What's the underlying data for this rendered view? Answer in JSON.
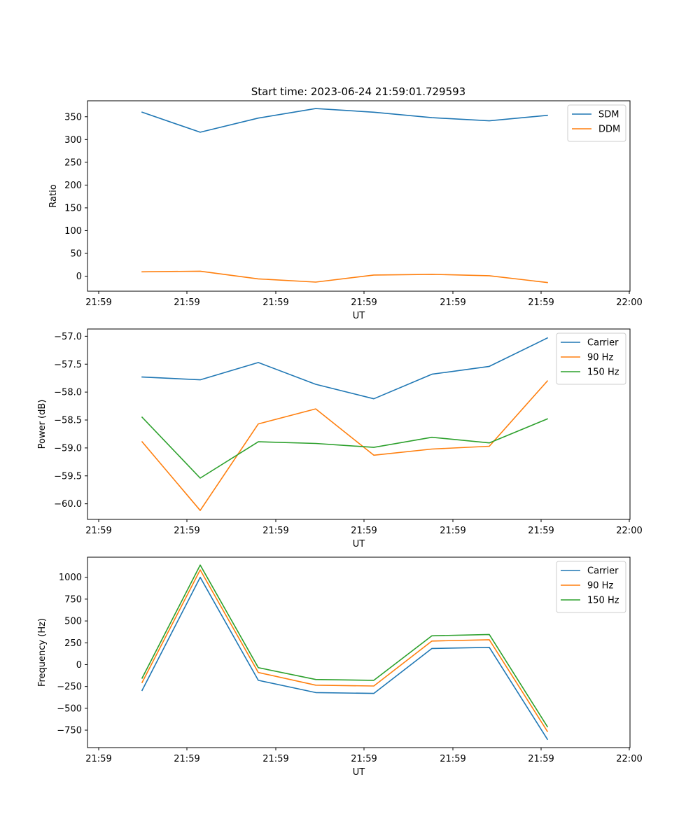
{
  "figure": {
    "title": "Start time: 2023-06-24 21:59:01.729593"
  },
  "chart_data": [
    {
      "type": "line",
      "title": "Start time: 2023-06-24 21:59:01.729593",
      "xlabel": "UT",
      "ylabel": "Ratio",
      "x_tick_labels": [
        "21:59",
        "21:59",
        "21:59",
        "21:59",
        "21:59",
        "21:59",
        "22:00"
      ],
      "x_points": 8,
      "ylim": [
        -33,
        385
      ],
      "yticks": [
        0,
        50,
        100,
        150,
        200,
        250,
        300,
        350
      ],
      "legend_position": "top-right",
      "grid": false,
      "series": [
        {
          "name": "SDM",
          "color": "#1f77b4",
          "values": [
            360,
            316,
            347,
            368,
            360,
            348,
            341,
            353
          ]
        },
        {
          "name": "DDM",
          "color": "#ff7f0e",
          "values": [
            9.5,
            11,
            -6,
            -13,
            2.5,
            4,
            1,
            -14
          ]
        }
      ]
    },
    {
      "type": "line",
      "xlabel": "UT",
      "ylabel": "Power (dB)",
      "x_tick_labels": [
        "21:59",
        "21:59",
        "21:59",
        "21:59",
        "21:59",
        "21:59",
        "22:00"
      ],
      "x_points": 8,
      "ylim": [
        -60.28,
        -56.87
      ],
      "yticks": [
        -60.0,
        -59.5,
        -59.0,
        -58.5,
        -58.0,
        -57.5,
        -57.0
      ],
      "ytick_labels": [
        "−60.0",
        "−59.5",
        "−59.0",
        "−58.5",
        "−58.0",
        "−57.5",
        "−57.0"
      ],
      "legend_position": "top-right",
      "grid": false,
      "series": [
        {
          "name": "Carrier",
          "color": "#1f77b4",
          "values": [
            -57.73,
            -57.78,
            -57.47,
            -57.86,
            -58.12,
            -57.68,
            -57.54,
            -57.03
          ]
        },
        {
          "name": "90 Hz",
          "color": "#ff7f0e",
          "values": [
            -58.89,
            -60.12,
            -58.57,
            -58.3,
            -59.13,
            -59.02,
            -58.97,
            -57.8
          ]
        },
        {
          "name": "150 Hz",
          "color": "#2ca02c",
          "values": [
            -58.45,
            -59.54,
            -58.89,
            -58.92,
            -58.99,
            -58.81,
            -58.91,
            -58.48
          ]
        }
      ]
    },
    {
      "type": "line",
      "xlabel": "UT",
      "ylabel": "Frequency (Hz)",
      "x_tick_labels": [
        "21:59",
        "21:59",
        "21:59",
        "21:59",
        "21:59",
        "21:59",
        "22:00"
      ],
      "x_points": 8,
      "ylim": [
        -950,
        1230
      ],
      "yticks": [
        -750,
        -500,
        -250,
        0,
        250,
        500,
        750,
        1000
      ],
      "ytick_labels": [
        "−750",
        "−500",
        "−250",
        "0",
        "250",
        "500",
        "750",
        "1000"
      ],
      "legend_position": "top-right",
      "grid": false,
      "series": [
        {
          "name": "Carrier",
          "color": "#1f77b4",
          "values": [
            -295,
            1000,
            -180,
            -320,
            -330,
            185,
            198,
            -855
          ]
        },
        {
          "name": "90 Hz",
          "color": "#ff7f0e",
          "values": [
            -205,
            1085,
            -90,
            -235,
            -245,
            270,
            285,
            -765
          ]
        },
        {
          "name": "150 Hz",
          "color": "#2ca02c",
          "values": [
            -155,
            1140,
            -35,
            -170,
            -180,
            330,
            345,
            -710
          ]
        }
      ]
    }
  ]
}
